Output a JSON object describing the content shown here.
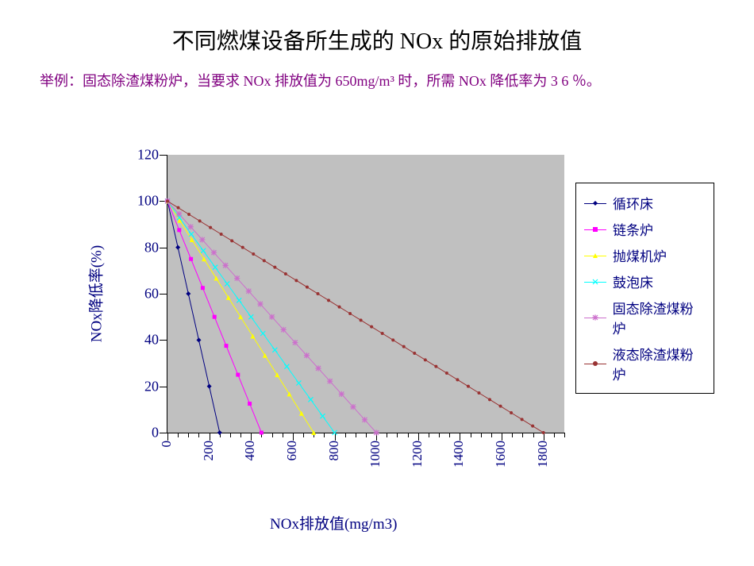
{
  "title": "不同燃煤设备所生成的 NOx 的原始排放值",
  "subtitle": "举例：固态除渣煤粉炉，当要求 NOx 排放值为 650mg/m³ 时，所需 NOx 降低率为 3 6 ％。",
  "chart": {
    "type": "line",
    "plot_background": "#c0c0c0",
    "page_background": "#ffffff",
    "axis_color": "#000000",
    "tick_label_color": "#000080",
    "axis_title_color": "#000080",
    "x_axis_title": "NOx排放值(mg/m3)",
    "y_axis_title": "NOx降低率(%)",
    "title_fontsize": 28,
    "subtitle_fontsize": 18,
    "subtitle_color": "#800080",
    "axis_title_fontsize": 19,
    "tick_label_fontsize": 18,
    "xlim": [
      0,
      1900
    ],
    "ylim": [
      0,
      120
    ],
    "x_ticks": [
      0,
      200,
      400,
      600,
      800,
      1000,
      1200,
      1400,
      1600,
      1800
    ],
    "x_minor_step": 50,
    "y_ticks": [
      0,
      20,
      40,
      60,
      80,
      100,
      120
    ],
    "x_label_rotation": -90,
    "series": [
      {
        "name": "循环床",
        "color": "#000080",
        "marker": "diamond",
        "marker_size": 6,
        "line_width": 1,
        "x_max": 250,
        "n_points": 6
      },
      {
        "name": "链条炉",
        "color": "#ff00ff",
        "marker": "square",
        "marker_size": 5,
        "line_width": 1,
        "x_max": 450,
        "n_points": 9
      },
      {
        "name": "抛煤机炉",
        "color": "#ffff00",
        "marker": "triangle",
        "marker_size": 6,
        "line_width": 1,
        "x_max": 700,
        "n_points": 13
      },
      {
        "name": "鼓泡床",
        "color": "#00ffff",
        "marker": "x",
        "marker_size": 6,
        "line_width": 1,
        "x_max": 800,
        "n_points": 15
      },
      {
        "name": "固态除渣煤粉炉",
        "color": "#cc70cc",
        "marker": "star",
        "marker_size": 6,
        "line_width": 1,
        "x_max": 1000,
        "n_points": 19
      },
      {
        "name": "液态除渣煤粉炉",
        "color": "#993333",
        "marker": "dot",
        "marker_size": 4,
        "line_width": 1,
        "x_max": 1800,
        "n_points": 36
      }
    ],
    "legend": {
      "position": "right",
      "border_color": "#000000",
      "background": "#ffffff",
      "text_color": "#000080",
      "fontsize": 17
    }
  }
}
